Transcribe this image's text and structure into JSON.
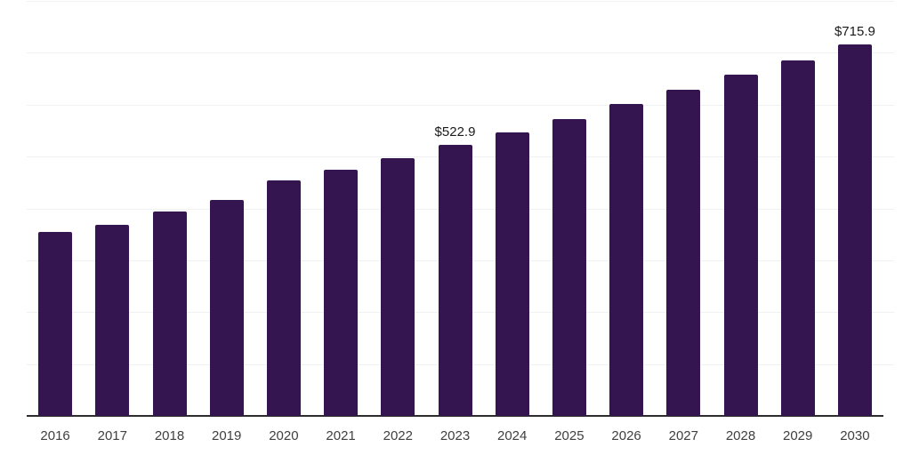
{
  "chart_data": {
    "type": "bar",
    "title": "",
    "xlabel": "",
    "ylabel": "",
    "categories": [
      "2016",
      "2017",
      "2018",
      "2019",
      "2020",
      "2021",
      "2022",
      "2023",
      "2024",
      "2025",
      "2026",
      "2027",
      "2028",
      "2029",
      "2030"
    ],
    "values": [
      354.6,
      368.4,
      394.7,
      415.9,
      453.5,
      475.2,
      497.0,
      522.9,
      546.7,
      572.4,
      601.5,
      629.0,
      658.0,
      685.5,
      715.9
    ],
    "value_labels": {
      "2023": "$522.9",
      "2030": "$715.9"
    },
    "ylim": [
      0,
      800
    ],
    "gridline_step": 100,
    "grid": "horizontal",
    "legend": "none",
    "y_tick_labels_visible": false,
    "colors": {
      "bar": "#341550",
      "axis_line": "#2d2d2d",
      "gridline": "#f1f1f4",
      "tick_label": "#404040",
      "data_label": "#1a1a1a",
      "background": "#ffffff"
    }
  }
}
